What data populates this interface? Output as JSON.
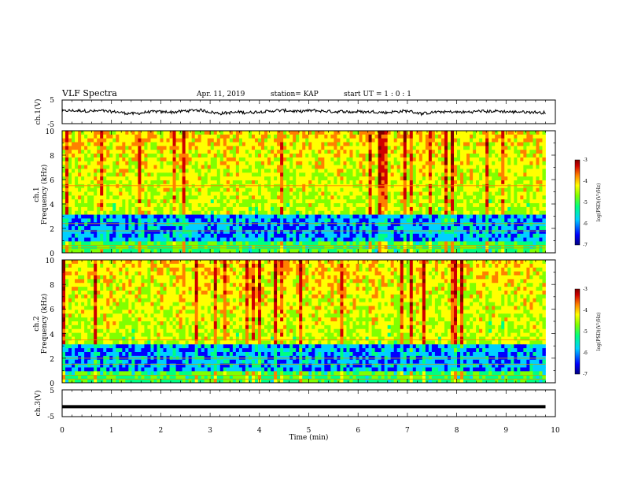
{
  "header": {
    "title": "VLF Spectra",
    "date": "Apr. 11, 2019",
    "station": "station= KAP",
    "start": "start  UT =   1 : 0  : 1"
  },
  "chart_data": [
    {
      "type": "line",
      "name": "ch1-waveform",
      "ylabel": "ch.1(V)",
      "ylim": [
        -5,
        5
      ],
      "yticks": [
        "5",
        "-5"
      ],
      "xlim": [
        0,
        10
      ],
      "x_extent_min": 9.8,
      "center_level_v": 0.0,
      "amplitude_v": 1.5
    },
    {
      "type": "heatmap",
      "name": "ch1-spectrogram",
      "ylabel": "Frequency (kHz)",
      "channel": "ch.1",
      "xlim": [
        0,
        10
      ],
      "ylim": [
        0,
        10
      ],
      "yticks": [
        "0",
        "2",
        "4",
        "6",
        "8",
        "10"
      ],
      "x_extent_min": 9.8,
      "colorbar": {
        "label": "log(PSD)(V²/Hz)",
        "range": [
          -7,
          -3
        ],
        "ticks": [
          "-3",
          "-4",
          "-5",
          "-6",
          "-7"
        ]
      },
      "low_band_khz": [
        1.0,
        3.2
      ],
      "interference_lines_khz": [
        5.5,
        2.4,
        1.8,
        0.6,
        0.4
      ]
    },
    {
      "type": "heatmap",
      "name": "ch2-spectrogram",
      "ylabel": "Frequency (kHz)",
      "channel": "ch.2",
      "xlim": [
        0,
        10
      ],
      "ylim": [
        0,
        10
      ],
      "yticks": [
        "0",
        "2",
        "4",
        "6",
        "8",
        "10"
      ],
      "x_extent_min": 9.8,
      "colorbar": {
        "label": "log(PSD)(V²/Hz)",
        "range": [
          -7,
          -3
        ],
        "ticks": [
          "-3",
          "-4",
          "-5",
          "-6",
          "-7"
        ]
      },
      "low_band_khz": [
        0.8,
        3.0
      ],
      "interference_lines_khz": [
        3.5,
        2.0,
        1.5,
        0.6,
        0.3
      ]
    },
    {
      "type": "line",
      "name": "ch3-waveform",
      "ylabel": "ch.3(V)",
      "ylim": [
        -5,
        5
      ],
      "yticks": [
        "5",
        "-5"
      ],
      "xlim": [
        0,
        10
      ],
      "x_extent_min": 9.8,
      "center_level_v": -1.3,
      "amplitude_v": 0.2
    }
  ],
  "x_axis": {
    "label": "Time (min)",
    "ticks": [
      "0",
      "1",
      "2",
      "3",
      "4",
      "5",
      "6",
      "7",
      "8",
      "9",
      "10"
    ]
  },
  "colors": {
    "spectro_scale": [
      "#00007f",
      "#0000ff",
      "#00d0ff",
      "#00ff80",
      "#80ff00",
      "#ffff00",
      "#ff8000",
      "#d00000",
      "#7f0000"
    ]
  }
}
